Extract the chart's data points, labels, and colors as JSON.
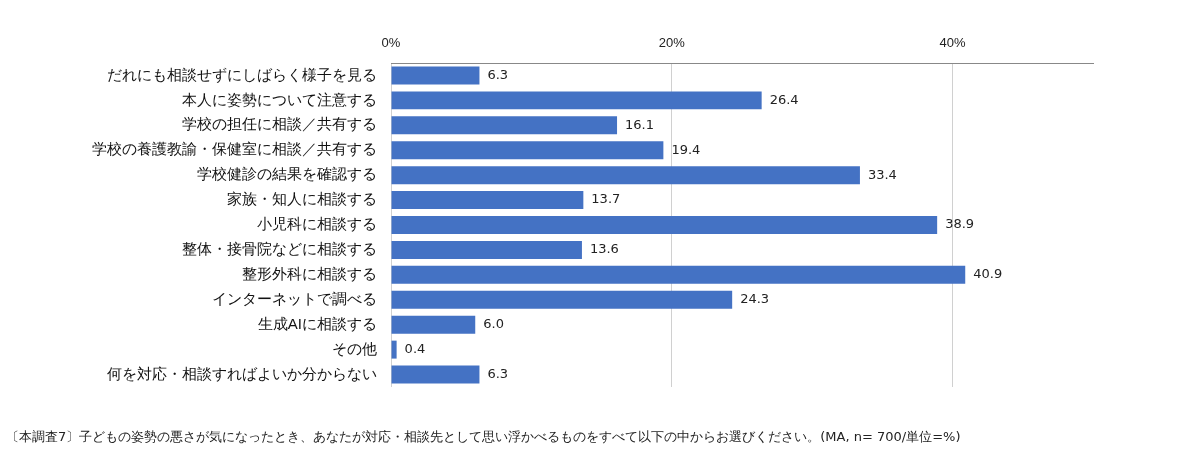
{
  "chart_data": {
    "type": "bar",
    "orientation": "horizontal",
    "categories": [
      "だれにも相談せずにしばらく様子を見る",
      "本人に姿勢について注意する",
      "学校の担任に相談／共有する",
      "学校の養護教諭・保健室に相談／共有する",
      "学校健診の結果を確認する",
      "家族・知人に相談する",
      "小児科に相談する",
      "整体・接骨院などに相談する",
      "整形外科に相談する",
      "インターネットで調べる",
      "生成AIに相談する",
      "その他",
      "何を対応・相談すればよいか分からない"
    ],
    "values": [
      6.3,
      26.4,
      16.1,
      19.4,
      33.4,
      13.7,
      38.9,
      13.6,
      40.9,
      24.3,
      6.0,
      0.4,
      6.3
    ],
    "value_labels": [
      "6.3",
      "26.4",
      "16.1",
      "19.4",
      "33.4",
      "13.7",
      "38.9",
      "13.6",
      "40.9",
      "24.3",
      "6.0",
      "0.4",
      "6.3"
    ],
    "color": "#4472c4",
    "xlim": [
      0,
      50
    ],
    "xticks": [
      {
        "value": 0,
        "label": "0%"
      },
      {
        "value": 20,
        "label": "20%"
      },
      {
        "value": 40,
        "label": "40%"
      }
    ],
    "grid": "x",
    "legend": false,
    "annotations": [
      "〔本調査7〕子どもの姿勢の悪さが気になったとき、あなたが対応・相談先として思い浮かべるものをすべて以下の中からお選びください。(MA, n= 700/単位=%)"
    ]
  }
}
